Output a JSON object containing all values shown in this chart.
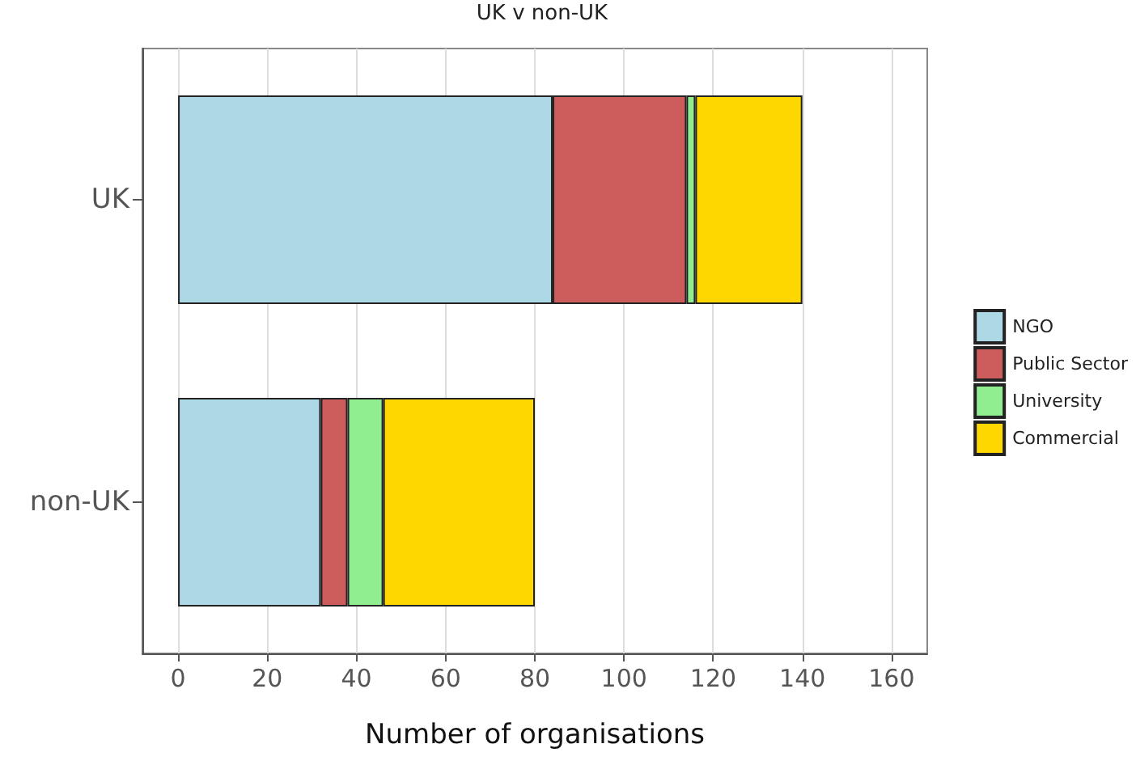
{
  "chart_data": {
    "type": "bar",
    "subtitle": "UK v non-UK",
    "xlabel": "Number of organisations",
    "orientation": "horizontal",
    "stacked": true,
    "categories": [
      "UK",
      "non-UK"
    ],
    "series": [
      {
        "name": "NGO",
        "color": "#add8e6",
        "values": [
          84,
          32
        ]
      },
      {
        "name": "Public Sector",
        "color": "#cd5c5c",
        "values": [
          30,
          6
        ]
      },
      {
        "name": "University",
        "color": "#90ee90",
        "values": [
          2,
          8
        ]
      },
      {
        "name": "Commercial",
        "color": "#ffd700",
        "values": [
          24,
          34
        ]
      }
    ],
    "xlim": [
      -8,
      168
    ],
    "xticks": [
      0,
      20,
      40,
      60,
      80,
      100,
      120,
      140,
      160
    ],
    "grid": "x",
    "legend": "right"
  }
}
